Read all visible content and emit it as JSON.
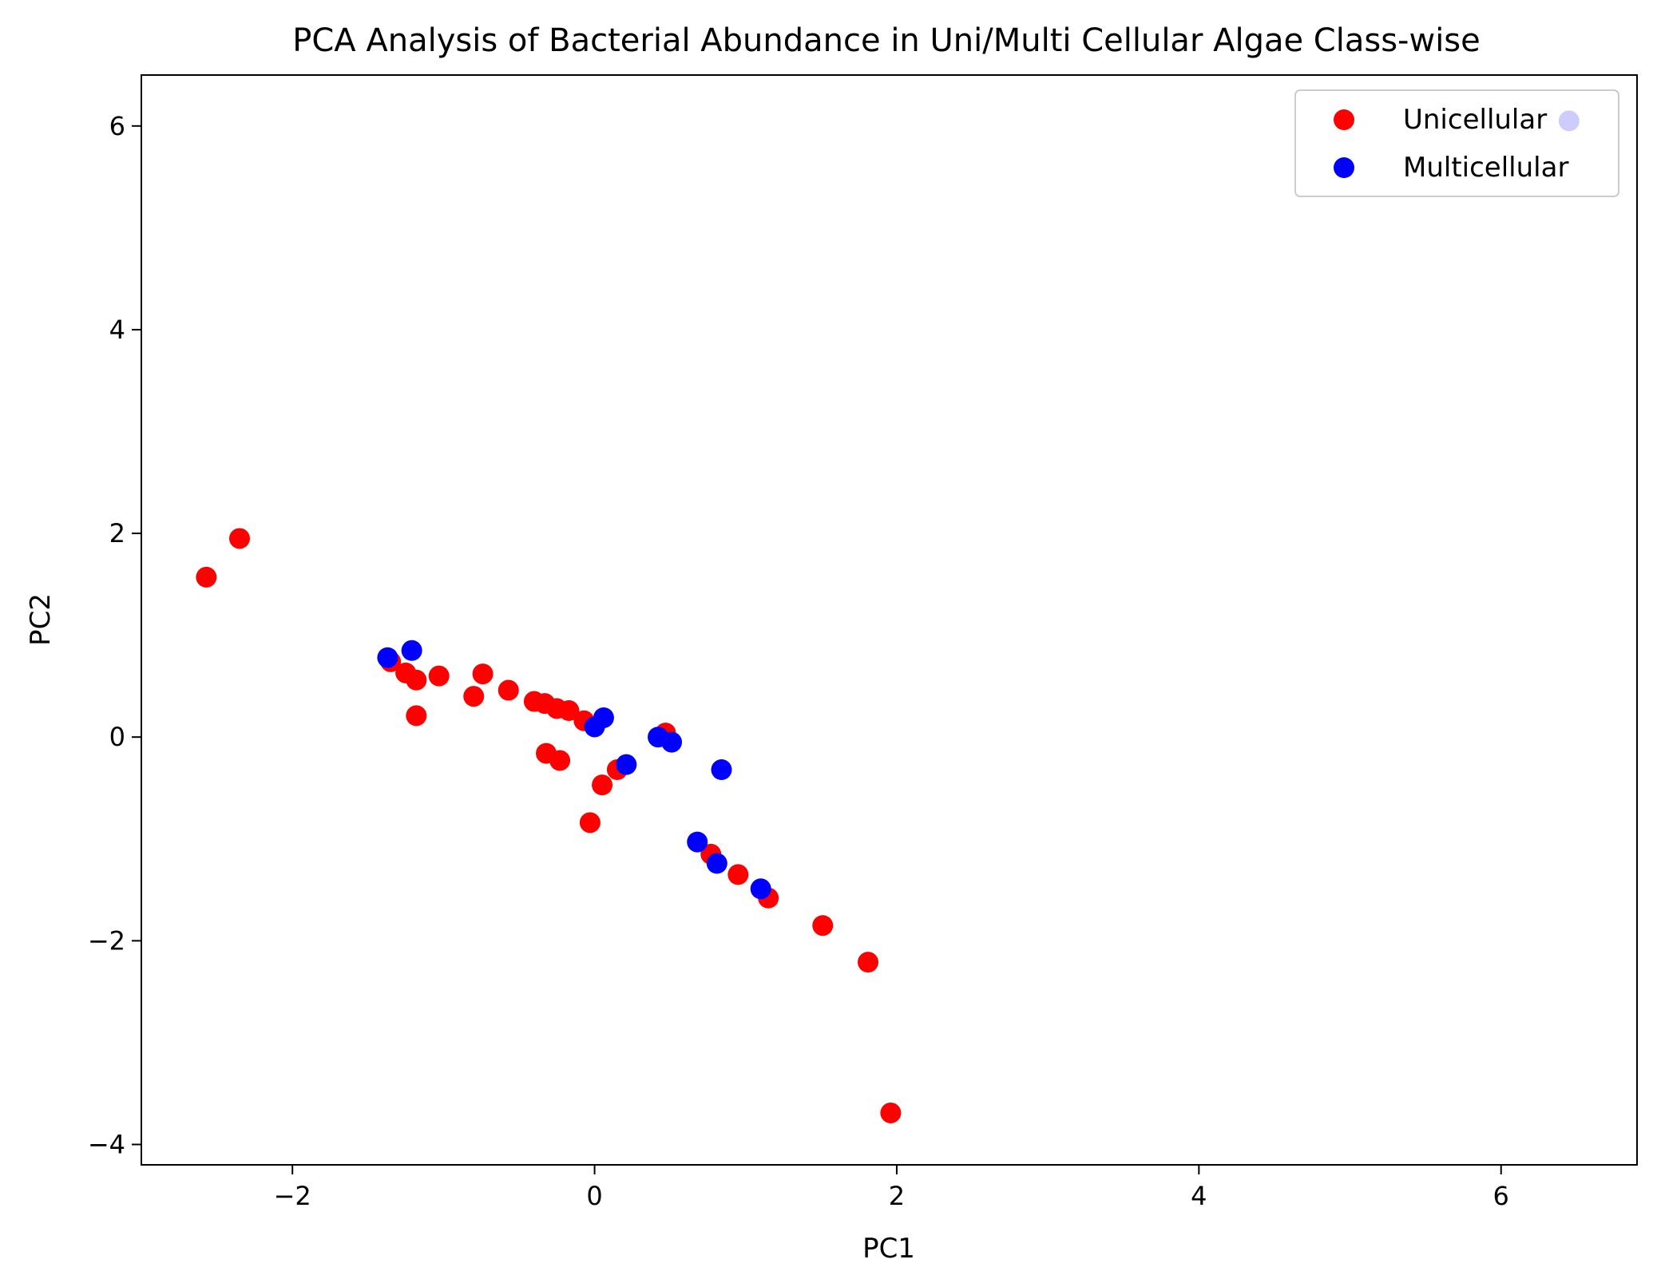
{
  "chart_data": {
    "type": "scatter",
    "title": "PCA Analysis of Bacterial Abundance in Uni/Multi Cellular Algae Class-wise",
    "xlabel": "PC1",
    "ylabel": "PC2",
    "xlim": [
      -3.0,
      6.9
    ],
    "ylim": [
      -4.2,
      6.5
    ],
    "xticks": [
      -2,
      0,
      2,
      4,
      6
    ],
    "yticks": [
      -4,
      -2,
      0,
      2,
      4,
      6
    ],
    "grid": false,
    "legend_position": "top-right",
    "series": [
      {
        "name": "Unicellular",
        "color": "#ff0000",
        "points": [
          [
            -2.57,
            1.57
          ],
          [
            -2.35,
            1.95
          ],
          [
            -1.35,
            0.74
          ],
          [
            -1.25,
            0.63
          ],
          [
            -1.18,
            0.56
          ],
          [
            -1.18,
            0.21
          ],
          [
            -1.03,
            0.6
          ],
          [
            -0.8,
            0.4
          ],
          [
            -0.74,
            0.62
          ],
          [
            -0.57,
            0.46
          ],
          [
            -0.4,
            0.35
          ],
          [
            -0.33,
            0.33
          ],
          [
            -0.25,
            0.28
          ],
          [
            -0.17,
            0.26
          ],
          [
            -0.07,
            0.16
          ],
          [
            -0.32,
            -0.16
          ],
          [
            -0.23,
            -0.23
          ],
          [
            0.05,
            -0.47
          ],
          [
            0.15,
            -0.32
          ],
          [
            -0.03,
            -0.84
          ],
          [
            0.47,
            0.04
          ],
          [
            0.77,
            -1.15
          ],
          [
            0.95,
            -1.35
          ],
          [
            1.15,
            -1.58
          ],
          [
            1.51,
            -1.85
          ],
          [
            1.81,
            -2.21
          ],
          [
            1.96,
            -3.69
          ]
        ]
      },
      {
        "name": "Multicellular",
        "color": "#0000ff",
        "points": [
          [
            -1.37,
            0.78
          ],
          [
            -1.21,
            0.85
          ],
          [
            0.0,
            0.1
          ],
          [
            0.06,
            0.19
          ],
          [
            0.21,
            -0.27
          ],
          [
            0.42,
            0.0
          ],
          [
            0.51,
            -0.05
          ],
          [
            0.68,
            -1.03
          ],
          [
            0.81,
            -1.24
          ],
          [
            0.84,
            -0.32
          ],
          [
            1.1,
            -1.49
          ],
          [
            6.45,
            6.05
          ]
        ]
      }
    ]
  }
}
